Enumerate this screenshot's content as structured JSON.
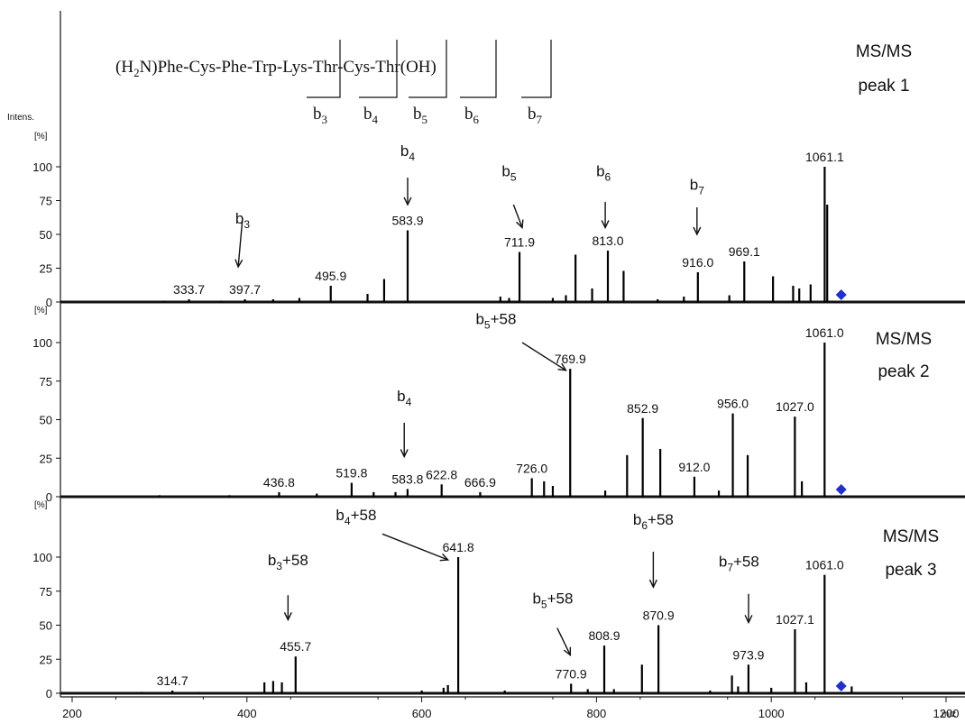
{
  "chart_data": {
    "type": "bar",
    "xlabel": "m/z",
    "xlim": [
      190,
      1230
    ],
    "x_ticks": [
      "200",
      "400",
      "600",
      "800",
      "1000",
      "1200"
    ],
    "y_ticks": [
      "0",
      "25",
      "50",
      "75",
      "100"
    ],
    "ylim": [
      0,
      100
    ],
    "y_unit_top": "Intens.",
    "y_unit": "[%]",
    "precursor_marker_mz": 1080,
    "precursor_marker_color": "#1f2fd0",
    "sequence": {
      "prefix": "(H",
      "sub2": "2",
      "rest": "N)Phe-Cys-Phe-Trp-Lys-Thr-Cys-Thr(OH)",
      "fragments": [
        {
          "base": "b",
          "sub": "3"
        },
        {
          "base": "b",
          "sub": "4"
        },
        {
          "base": "b",
          "sub": "5"
        },
        {
          "base": "b",
          "sub": "6"
        },
        {
          "base": "b",
          "sub": "7"
        }
      ]
    },
    "panels": [
      {
        "title_line1": "MS/MS",
        "title_line2": "peak 1",
        "peaks": [
          {
            "x": 305,
            "y": 1
          },
          {
            "x": 333.7,
            "y": 2
          },
          {
            "x": 370,
            "y": 1
          },
          {
            "x": 397.7,
            "y": 2
          },
          {
            "x": 430,
            "y": 2
          },
          {
            "x": 460,
            "y": 3
          },
          {
            "x": 495.9,
            "y": 12
          },
          {
            "x": 538,
            "y": 6
          },
          {
            "x": 557,
            "y": 17
          },
          {
            "x": 583.9,
            "y": 53
          },
          {
            "x": 690,
            "y": 4
          },
          {
            "x": 700,
            "y": 3
          },
          {
            "x": 711.9,
            "y": 37
          },
          {
            "x": 750,
            "y": 3
          },
          {
            "x": 765,
            "y": 5
          },
          {
            "x": 776,
            "y": 35
          },
          {
            "x": 795,
            "y": 10
          },
          {
            "x": 813.0,
            "y": 38
          },
          {
            "x": 831,
            "y": 23
          },
          {
            "x": 870,
            "y": 2
          },
          {
            "x": 900,
            "y": 4
          },
          {
            "x": 916.0,
            "y": 22
          },
          {
            "x": 952,
            "y": 5
          },
          {
            "x": 969.1,
            "y": 30
          },
          {
            "x": 1002,
            "y": 19
          },
          {
            "x": 1025,
            "y": 12
          },
          {
            "x": 1032,
            "y": 10
          },
          {
            "x": 1045,
            "y": 13
          },
          {
            "x": 1061.1,
            "y": 100
          },
          {
            "x": 1064,
            "y": 72
          }
        ],
        "labels": [
          {
            "text": "333.7",
            "x": 333.7,
            "y": 2
          },
          {
            "text": "397.7",
            "x": 397.7,
            "y": 2
          },
          {
            "text": "495.9",
            "x": 495.9,
            "y": 12
          },
          {
            "text": "583.9",
            "x": 583.9,
            "y": 53
          },
          {
            "text": "711.9",
            "x": 711.9,
            "y": 37
          },
          {
            "text": "813.0",
            "x": 813.0,
            "y": 38
          },
          {
            "text": "916.0",
            "x": 916.0,
            "y": 22
          },
          {
            "text": "969.1",
            "x": 969.1,
            "y": 30
          },
          {
            "text": "1061.1",
            "x": 1061.1,
            "y": 100
          }
        ],
        "annotations": [
          {
            "base": "b",
            "sub": "3",
            "plus": "",
            "x": 395,
            "y": 62,
            "x2": 390,
            "y2": 26,
            "tx": 395,
            "ty": 58
          },
          {
            "base": "b",
            "sub": "4",
            "plus": "",
            "x": 583.9,
            "y": 92,
            "x2": 583.9,
            "y2": 72,
            "tx": 583.9,
            "ty": 108
          },
          {
            "base": "b",
            "sub": "5",
            "plus": "",
            "x": 705,
            "y": 72,
            "x2": 715,
            "y2": 55,
            "tx": 700,
            "ty": 93
          },
          {
            "base": "b",
            "sub": "6",
            "plus": "",
            "x": 810,
            "y": 74,
            "x2": 810,
            "y2": 55,
            "tx": 808,
            "ty": 93
          },
          {
            "base": "b",
            "sub": "7",
            "plus": "",
            "x": 915,
            "y": 70,
            "x2": 915,
            "y2": 50,
            "tx": 915,
            "ty": 83
          }
        ]
      },
      {
        "title_line1": "MS/MS",
        "title_line2": "peak 2",
        "peaks": [
          {
            "x": 300,
            "y": 1
          },
          {
            "x": 380,
            "y": 1
          },
          {
            "x": 436.8,
            "y": 3
          },
          {
            "x": 480,
            "y": 2
          },
          {
            "x": 519.8,
            "y": 9
          },
          {
            "x": 545,
            "y": 3
          },
          {
            "x": 570,
            "y": 3
          },
          {
            "x": 583.8,
            "y": 5
          },
          {
            "x": 622.8,
            "y": 8
          },
          {
            "x": 666.9,
            "y": 3
          },
          {
            "x": 726.0,
            "y": 12
          },
          {
            "x": 740,
            "y": 10
          },
          {
            "x": 750,
            "y": 7
          },
          {
            "x": 769.9,
            "y": 83
          },
          {
            "x": 810,
            "y": 4
          },
          {
            "x": 835,
            "y": 27
          },
          {
            "x": 852.9,
            "y": 51
          },
          {
            "x": 873,
            "y": 31
          },
          {
            "x": 912.0,
            "y": 13
          },
          {
            "x": 940,
            "y": 4
          },
          {
            "x": 956.0,
            "y": 54
          },
          {
            "x": 973,
            "y": 27
          },
          {
            "x": 1027.0,
            "y": 52
          },
          {
            "x": 1035,
            "y": 10
          },
          {
            "x": 1061.0,
            "y": 100
          }
        ],
        "labels": [
          {
            "text": "436.8",
            "x": 436.8,
            "y": 3
          },
          {
            "text": "519.8",
            "x": 519.8,
            "y": 9
          },
          {
            "text": "583.8",
            "x": 583.8,
            "y": 5
          },
          {
            "text": "622.8",
            "x": 622.8,
            "y": 8
          },
          {
            "text": "666.9",
            "x": 666.9,
            "y": 3
          },
          {
            "text": "726.0",
            "x": 726.0,
            "y": 12
          },
          {
            "text": "769.9",
            "x": 769.9,
            "y": 83
          },
          {
            "text": "852.9",
            "x": 852.9,
            "y": 51
          },
          {
            "text": "912.0",
            "x": 912.0,
            "y": 13
          },
          {
            "text": "956.0",
            "x": 956.0,
            "y": 54
          },
          {
            "text": "1027.0",
            "x": 1027.0,
            "y": 52
          },
          {
            "text": "1061.0",
            "x": 1061.0,
            "y": 100
          }
        ],
        "annotations": [
          {
            "base": "b",
            "sub": "5",
            "plus": "+58",
            "x": 715,
            "y": 100,
            "x2": 765,
            "y2": 82,
            "tx": 685,
            "ty": 112
          },
          {
            "base": "b",
            "sub": "4",
            "plus": "",
            "x": 580,
            "y": 48,
            "x2": 580,
            "y2": 26,
            "tx": 580,
            "ty": 62
          }
        ]
      },
      {
        "title_line1": "MS/MS",
        "title_line2": "peak 3",
        "peaks": [
          {
            "x": 280,
            "y": 1
          },
          {
            "x": 314.7,
            "y": 2
          },
          {
            "x": 345,
            "y": 1
          },
          {
            "x": 420,
            "y": 8
          },
          {
            "x": 430,
            "y": 9
          },
          {
            "x": 440,
            "y": 8
          },
          {
            "x": 455.7,
            "y": 27
          },
          {
            "x": 600,
            "y": 2
          },
          {
            "x": 625,
            "y": 4
          },
          {
            "x": 630,
            "y": 6
          },
          {
            "x": 641.8,
            "y": 100
          },
          {
            "x": 695,
            "y": 2
          },
          {
            "x": 770.9,
            "y": 7
          },
          {
            "x": 790,
            "y": 3
          },
          {
            "x": 808.9,
            "y": 35
          },
          {
            "x": 820,
            "y": 3
          },
          {
            "x": 852,
            "y": 21
          },
          {
            "x": 870.9,
            "y": 50
          },
          {
            "x": 930,
            "y": 2
          },
          {
            "x": 955,
            "y": 13
          },
          {
            "x": 962,
            "y": 5
          },
          {
            "x": 973.9,
            "y": 21
          },
          {
            "x": 1000,
            "y": 4
          },
          {
            "x": 1027.1,
            "y": 47
          },
          {
            "x": 1040,
            "y": 8
          },
          {
            "x": 1061.0,
            "y": 87
          },
          {
            "x": 1092,
            "y": 5
          }
        ],
        "labels": [
          {
            "text": "314.7",
            "x": 314.7,
            "y": 2
          },
          {
            "text": "455.7",
            "x": 455.7,
            "y": 27
          },
          {
            "text": "641.8",
            "x": 641.8,
            "y": 100
          },
          {
            "text": "770.9",
            "x": 770.9,
            "y": 7
          },
          {
            "text": "808.9",
            "x": 808.9,
            "y": 35
          },
          {
            "text": "870.9",
            "x": 870.9,
            "y": 50
          },
          {
            "text": "973.9",
            "x": 973.9,
            "y": 21
          },
          {
            "text": "1027.1",
            "x": 1027.1,
            "y": 47
          },
          {
            "text": "1061.0",
            "x": 1061.0,
            "y": 87
          }
        ],
        "annotations": [
          {
            "base": "b",
            "sub": "3",
            "plus": "+58",
            "x": 447,
            "y": 72,
            "x2": 447,
            "y2": 54,
            "tx": 447,
            "ty": 94
          },
          {
            "base": "b",
            "sub": "4",
            "plus": "+58",
            "x": 555,
            "y": 117,
            "x2": 630,
            "y2": 98,
            "tx": 525,
            "ty": 127
          },
          {
            "base": "b",
            "sub": "5",
            "plus": "+58",
            "x": 755,
            "y": 48,
            "x2": 770,
            "y2": 28,
            "tx": 750,
            "ty": 66
          },
          {
            "base": "b",
            "sub": "6",
            "plus": "+58",
            "x": 865,
            "y": 104,
            "x2": 865,
            "y2": 78,
            "tx": 865,
            "ty": 124
          },
          {
            "base": "b",
            "sub": "7",
            "plus": "+58",
            "x": 974,
            "y": 73,
            "x2": 974,
            "y2": 52,
            "tx": 963,
            "ty": 93
          }
        ]
      }
    ]
  }
}
